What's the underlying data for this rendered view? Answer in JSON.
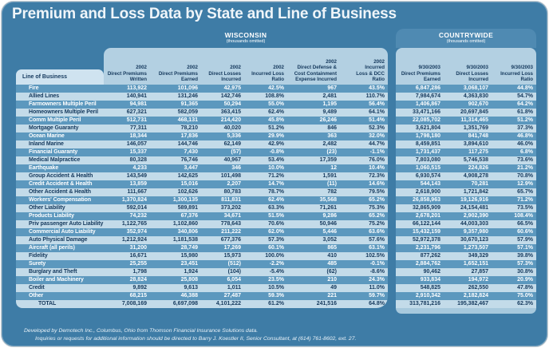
{
  "title": "Premium and Loss Data by State and Line of Business",
  "line_of_business_label": "Line of Business",
  "wisconsin": {
    "name": "WISCONSIN",
    "note": "(thousands omitted)",
    "columns": [
      "2002\nDirect Premiums\nWritten",
      "2002\nDirect Premiums\nEarned",
      "2002\nDirect Losses\nIncurred",
      "2002\nIncurred Loss\nRatio",
      "2002\nDirect Defense &\nCost Containment\nExpense Incurred",
      "2002\nIncurred\nLoss & DCC\nRatio"
    ]
  },
  "countrywide": {
    "name": "COUNTRYWIDE",
    "note": "(thousands omitted)",
    "columns": [
      "9/30/2003\nDirect Premiums\nEarned",
      "9/30/2003\nDirect Losses\nIncurred",
      "9/30/2003\nIncurred Loss\nRatio"
    ]
  },
  "rows": [
    {
      "lob": "Fire",
      "wi": [
        "113,922",
        "101,096",
        "42,975",
        "42.5%",
        "967",
        "43.5%"
      ],
      "cw": [
        "6,847,286",
        "3,068,107",
        "44.8%"
      ]
    },
    {
      "lob": "Allied Lines",
      "wi": [
        "140,941",
        "131,246",
        "142,746",
        "108.8%",
        "2,481",
        "110.7%"
      ],
      "cw": [
        "7,984,674",
        "4,363,830",
        "54.7%"
      ]
    },
    {
      "lob": "Farmowners Multiple Peril",
      "wi": [
        "94,981",
        "91,365",
        "50,294",
        "55.0%",
        "1,195",
        "56.4%"
      ],
      "cw": [
        "1,406,867",
        "902,670",
        "64.2%"
      ]
    },
    {
      "lob": "Homeowners Multiple Peril",
      "wi": [
        "627,321",
        "582,059",
        "363,415",
        "62.4%",
        "9,489",
        "64.1%"
      ],
      "cw": [
        "33,471,166",
        "20,697,845",
        "61.8%"
      ]
    },
    {
      "lob": "Comm Multiple Peril",
      "wi": [
        "512,731",
        "468,131",
        "214,420",
        "45.8%",
        "26,246",
        "51.4%"
      ],
      "cw": [
        "22,085,702",
        "11,314,465",
        "51.2%"
      ]
    },
    {
      "lob": "Mortgage Guaranty",
      "wi": [
        "77,311",
        "78,210",
        "40,020",
        "51.2%",
        "846",
        "52.3%"
      ],
      "cw": [
        "3,621,804",
        "1,351,769",
        "37.3%"
      ]
    },
    {
      "lob": "Ocean Marine",
      "wi": [
        "18,344",
        "17,836",
        "5,336",
        "29.9%",
        "363",
        "32.0%"
      ],
      "cw": [
        "1,798,180",
        "841,748",
        "46.8%"
      ]
    },
    {
      "lob": "Inland Marine",
      "wi": [
        "146,057",
        "144,746",
        "62,149",
        "42.9%",
        "2,482",
        "44.7%"
      ],
      "cw": [
        "8,459,851",
        "3,894,610",
        "46.0%"
      ]
    },
    {
      "lob": "Financial Guaranty",
      "wi": [
        "15,337",
        "7,430",
        "(57)",
        "-0.8%",
        "(23)",
        "-1.1%"
      ],
      "cw": [
        "1,731,437",
        "117,275",
        "6.8%"
      ]
    },
    {
      "lob": "Medical Malpractice",
      "wi": [
        "80,328",
        "76,746",
        "40,967",
        "53.4%",
        "17,359",
        "76.0%"
      ],
      "cw": [
        "7,803,080",
        "5,746,538",
        "73.6%"
      ]
    },
    {
      "lob": "Earthquake",
      "wi": [
        "4,233",
        "3,447",
        "346",
        "10.0%",
        "12",
        "10.4%"
      ],
      "cw": [
        "1,060,515",
        "224,826",
        "21.2%"
      ]
    },
    {
      "lob": "Group Accident & Health",
      "wi": [
        "143,549",
        "142,625",
        "101,498",
        "71.2%",
        "1,591",
        "72.3%"
      ],
      "cw": [
        "6,930,574",
        "4,908,278",
        "70.8%"
      ]
    },
    {
      "lob": "Credit Accident & Health",
      "wi": [
        "13,859",
        "15,016",
        "2,207",
        "14.7%",
        "(11)",
        "14.6%"
      ],
      "cw": [
        "544,143",
        "70,281",
        "12.9%"
      ]
    },
    {
      "lob": "Other Accident & Health",
      "wi": [
        "111,667",
        "102,626",
        "80,783",
        "78.7%",
        "782",
        "79.5%"
      ],
      "cw": [
        "2,618,900",
        "1,721,842",
        "65.7%"
      ]
    },
    {
      "lob": "Workers' Compensation",
      "wi": [
        "1,370,824",
        "1,300,135",
        "811,831",
        "62.4%",
        "35,568",
        "65.2%"
      ],
      "cw": [
        "26,858,963",
        "19,126,916",
        "71.2%"
      ]
    },
    {
      "lob": "Other Liability",
      "wi": [
        "592,014",
        "589,891",
        "373,202",
        "63.3%",
        "71,261",
        "75.3%"
      ],
      "cw": [
        "32,865,909",
        "24,154,481",
        "73.5%"
      ]
    },
    {
      "lob": "Products Liability",
      "wi": [
        "74,232",
        "67,376",
        "34,671",
        "51.5%",
        "9,286",
        "65.2%"
      ],
      "cw": [
        "2,678,201",
        "2,902,390",
        "108.4%"
      ]
    },
    {
      "lob": "Priv passenger Auto Liability",
      "wi": [
        "1,122,765",
        "1,102,860",
        "778,643",
        "70.6%",
        "50,946",
        "75.2%"
      ],
      "cw": [
        "66,122,144",
        "44,003,303",
        "66.5%"
      ]
    },
    {
      "lob": "Commercial Auto Liability",
      "wi": [
        "352,974",
        "340,806",
        "211,222",
        "62.0%",
        "5,446",
        "63.6%"
      ],
      "cw": [
        "15,432,159",
        "9,357,980",
        "60.6%"
      ]
    },
    {
      "lob": "Auto Physical Damage",
      "wi": [
        "1,212,924",
        "1,181,538",
        "677,376",
        "57.3%",
        "3,052",
        "57.6%"
      ],
      "cw": [
        "52,972,378",
        "30,670,123",
        "57.9%"
      ]
    },
    {
      "lob": "Aircraft (all perils)",
      "wi": [
        "31,200",
        "28,749",
        "17,269",
        "60.1%",
        "865",
        "63.1%"
      ],
      "cw": [
        "2,231,796",
        "1,273,507",
        "57.1%"
      ]
    },
    {
      "lob": "Fidelity",
      "wi": [
        "16,671",
        "15,980",
        "15,973",
        "100.0%",
        "410",
        "102.5%"
      ],
      "cw": [
        "877,262",
        "349,329",
        "39.8%"
      ]
    },
    {
      "lob": "Surety",
      "wi": [
        "25,255",
        "23,451",
        "(512)",
        "-2.2%",
        "485",
        "-0.1%"
      ],
      "cw": [
        "2,884,762",
        "1,652,151",
        "57.3%"
      ]
    },
    {
      "lob": "Burglary and Theft",
      "wi": [
        "1,798",
        "1,924",
        "(104)",
        "-5.4%",
        "(62)",
        "-8.6%"
      ],
      "cw": [
        "90,462",
        "27,857",
        "30.8%"
      ]
    },
    {
      "lob": "Boiler and Machinery",
      "wi": [
        "28,824",
        "25,808",
        "6,054",
        "23.5%",
        "210",
        "24.3%"
      ],
      "cw": [
        "933,834",
        "194,972",
        "20.9%"
      ]
    },
    {
      "lob": "Credit",
      "wi": [
        "9,892",
        "9,613",
        "1,011",
        "10.5%",
        "49",
        "11.0%"
      ],
      "cw": [
        "548,825",
        "262,550",
        "47.8%"
      ]
    },
    {
      "lob": "Other",
      "wi": [
        "68,215",
        "46,388",
        "27,487",
        "59.3%",
        "221",
        "59.7%"
      ],
      "cw": [
        "2,910,342",
        "2,182,824",
        "75.0%"
      ]
    }
  ],
  "total": {
    "lob": "TOTAL",
    "wi": [
      "7,008,169",
      "6,697,098",
      "4,101,222",
      "61.2%",
      "241,516",
      "64.8%"
    ],
    "cw": [
      "313,781,216",
      "195,382,467",
      "62.3%"
    ]
  },
  "footer": {
    "line1": "Developed by Demotech Inc., Columbus, Ohio from Thomson Financial Insurance Solutions data.",
    "line2": "Inquiries or requests for additional information should be directed to Barry J. Koestler II, Senior Consultant, at (614) 761-8602, ext. 27."
  },
  "colors": {
    "card_bg": "#3E7CA6",
    "dark_row": "#5C98BE",
    "light_row": "#C3DBE9",
    "header_panel": "#B3D0E2",
    "lob_tab": "#CFE3F0",
    "navy_text": "#14385C",
    "cw_panel": "#4F8AB2"
  }
}
